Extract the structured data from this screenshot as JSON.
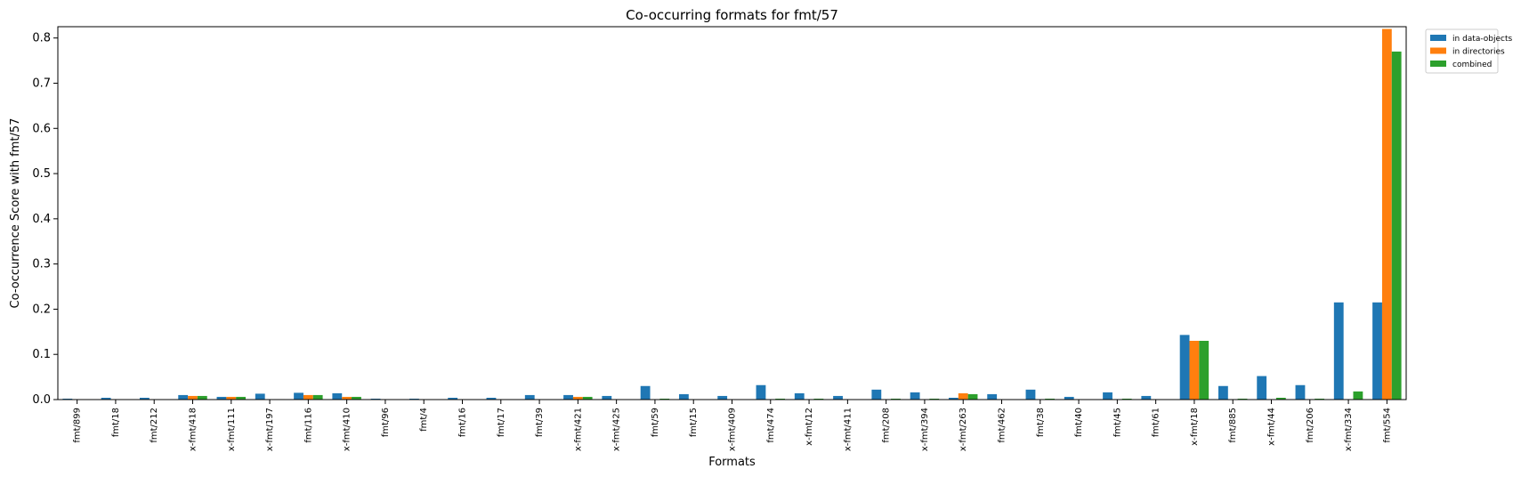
{
  "chart_data": {
    "type": "bar",
    "title": "Co-occurring formats for fmt/57",
    "xlabel": "Formats",
    "ylabel": "Co-occurrence Score with fmt/57",
    "ylim": [
      0,
      0.825
    ],
    "yticks": [
      "0.0",
      "0.1",
      "0.2",
      "0.3",
      "0.4",
      "0.5",
      "0.6",
      "0.7",
      "0.8"
    ],
    "ytick_values": [
      0,
      0.1,
      0.2,
      0.3,
      0.4,
      0.5,
      0.6,
      0.7,
      0.8
    ],
    "grid": false,
    "legend_position": "top-right outside",
    "categories": [
      "fmt/899",
      "fmt/18",
      "fmt/212",
      "x-fmt/418",
      "x-fmt/111",
      "x-fmt/197",
      "fmt/116",
      "x-fmt/410",
      "fmt/96",
      "fmt/4",
      "fmt/16",
      "fmt/17",
      "fmt/39",
      "x-fmt/421",
      "x-fmt/425",
      "fmt/59",
      "fmt/15",
      "x-fmt/409",
      "fmt/474",
      "x-fmt/12",
      "x-fmt/411",
      "fmt/208",
      "x-fmt/394",
      "x-fmt/263",
      "fmt/462",
      "fmt/38",
      "fmt/40",
      "fmt/45",
      "fmt/61",
      "x-fmt/18",
      "fmt/885",
      "x-fmt/44",
      "fmt/206",
      "x-fmt/334",
      "fmt/554"
    ],
    "series": [
      {
        "name": "in data-objects",
        "color": "#1f77b4",
        "values": [
          0.002,
          0.004,
          0.004,
          0.01,
          0.006,
          0.013,
          0.015,
          0.014,
          0.002,
          0.002,
          0.004,
          0.004,
          0.01,
          0.01,
          0.008,
          0.03,
          0.012,
          0.008,
          0.032,
          0.014,
          0.008,
          0.022,
          0.016,
          0.004,
          0.012,
          0.022,
          0.006,
          0.016,
          0.008,
          0.143,
          0.03,
          0.052,
          0.032,
          0.215,
          0.215
        ]
      },
      {
        "name": "in directories",
        "color": "#ff7f0e",
        "values": [
          0,
          0,
          0,
          0.008,
          0.006,
          0,
          0.01,
          0.006,
          0,
          0,
          0,
          0,
          0,
          0.006,
          0,
          0,
          0,
          0,
          0,
          0,
          0,
          0,
          0,
          0.014,
          0,
          0,
          0,
          0,
          0,
          0.13,
          0,
          0,
          0,
          0,
          0.82
        ]
      },
      {
        "name": "combined",
        "color": "#2ca02c",
        "values": [
          0,
          0,
          0,
          0.008,
          0.006,
          0.001,
          0.01,
          0.006,
          0,
          0,
          0,
          0,
          0,
          0.006,
          0,
          0.002,
          0,
          0,
          0.002,
          0.002,
          0,
          0.002,
          0.002,
          0.012,
          0,
          0.002,
          0,
          0.002,
          0,
          0.13,
          0.002,
          0.004,
          0.002,
          0.018,
          0.77
        ]
      }
    ]
  }
}
